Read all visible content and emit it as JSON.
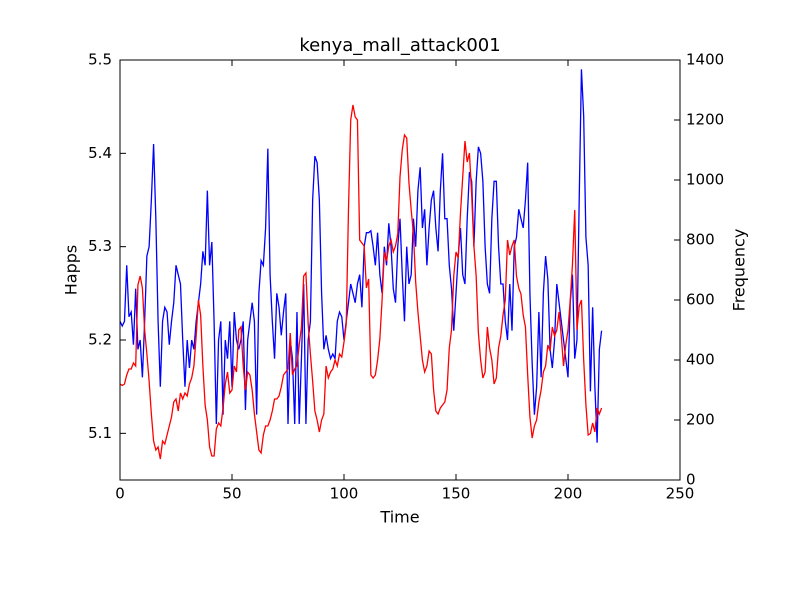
{
  "chart_data": {
    "type": "line",
    "title": "kenya_mall_attack001",
    "xlabel": "Time",
    "ylabel": "Happs",
    "y2label": "Frequency",
    "x": [
      0,
      1,
      2,
      3,
      4,
      5,
      6,
      7,
      8,
      9,
      10,
      11,
      12,
      13,
      14,
      15,
      16,
      17,
      18,
      19,
      20,
      21,
      22,
      23,
      24,
      25,
      26,
      27,
      28,
      29,
      30,
      31,
      32,
      33,
      34,
      35,
      36,
      37,
      38,
      39,
      40,
      41,
      42,
      43,
      44,
      45,
      46,
      47,
      48,
      49,
      50,
      51,
      52,
      53,
      54,
      55,
      56,
      57,
      58,
      59,
      60,
      61,
      62,
      63,
      64,
      65,
      66,
      67,
      68,
      69,
      70,
      71,
      72,
      73,
      74,
      75,
      76,
      77,
      78,
      79,
      80,
      81,
      82,
      83,
      84,
      85,
      86,
      87,
      88,
      89,
      90,
      91,
      92,
      93,
      94,
      95,
      96,
      97,
      98,
      99,
      100,
      101,
      102,
      103,
      104,
      105,
      106,
      107,
      108,
      109,
      110,
      111,
      112,
      113,
      114,
      115,
      116,
      117,
      118,
      119,
      120,
      121,
      122,
      123,
      124,
      125,
      126,
      127,
      128,
      129,
      130,
      131,
      132,
      133,
      134,
      135,
      136,
      137,
      138,
      139,
      140,
      141,
      142,
      143,
      144,
      145,
      146,
      147,
      148,
      149,
      150,
      151,
      152,
      153,
      154,
      155,
      156,
      157,
      158,
      159,
      160,
      161,
      162,
      163,
      164,
      165,
      166,
      167,
      168,
      169,
      170,
      171,
      172,
      173,
      174,
      175,
      176,
      177,
      178,
      179,
      180,
      181,
      182,
      183,
      184,
      185,
      186,
      187,
      188,
      189,
      190,
      191,
      192,
      193,
      194,
      195,
      196,
      197,
      198,
      199,
      200,
      201,
      202,
      203,
      204,
      205,
      206,
      207,
      208,
      209,
      210,
      211,
      212,
      213,
      214,
      215
    ],
    "series": [
      {
        "color": "#0000ff",
        "axis": "y",
        "values": [
          5.22,
          5.215,
          5.22,
          5.28,
          5.225,
          5.23,
          5.195,
          5.255,
          5.19,
          5.2,
          5.16,
          5.22,
          5.29,
          5.3,
          5.35,
          5.41,
          5.33,
          5.22,
          5.15,
          5.22,
          5.235,
          5.23,
          5.195,
          5.22,
          5.24,
          5.28,
          5.27,
          5.26,
          5.2,
          5.15,
          5.2,
          5.17,
          5.2,
          5.19,
          5.22,
          5.24,
          5.26,
          5.295,
          5.28,
          5.36,
          5.28,
          5.305,
          5.22,
          5.11,
          5.2,
          5.22,
          5.12,
          5.2,
          5.18,
          5.22,
          5.15,
          5.23,
          5.2,
          5.19,
          5.2,
          5.22,
          5.125,
          5.2,
          5.22,
          5.24,
          5.22,
          5.12,
          5.25,
          5.285,
          5.28,
          5.32,
          5.405,
          5.27,
          5.22,
          5.18,
          5.25,
          5.235,
          5.205,
          5.23,
          5.25,
          5.11,
          5.2,
          5.18,
          5.11,
          5.23,
          5.11,
          5.18,
          5.26,
          5.11,
          5.2,
          5.22,
          5.35,
          5.397,
          5.39,
          5.35,
          5.25,
          5.19,
          5.205,
          5.19,
          5.18,
          5.185,
          5.18,
          5.22,
          5.23,
          5.225,
          5.2,
          5.22,
          5.24,
          5.26,
          5.25,
          5.24,
          5.26,
          5.27,
          5.235,
          5.3,
          5.315,
          5.315,
          5.317,
          5.3,
          5.28,
          5.315,
          5.27,
          5.25,
          5.3,
          5.28,
          5.325,
          5.3,
          5.255,
          5.24,
          5.3,
          5.33,
          5.27,
          5.22,
          5.3,
          5.26,
          5.27,
          5.33,
          5.3,
          5.36,
          5.385,
          5.32,
          5.34,
          5.28,
          5.32,
          5.35,
          5.36,
          5.32,
          5.295,
          5.36,
          5.4,
          5.33,
          5.33,
          5.28,
          5.255,
          5.21,
          5.25,
          5.29,
          5.32,
          5.27,
          5.26,
          5.33,
          5.38,
          5.37,
          5.3,
          5.37,
          5.407,
          5.4,
          5.37,
          5.3,
          5.26,
          5.25,
          5.33,
          5.37,
          5.37,
          5.3,
          5.26,
          5.26,
          5.22,
          5.2,
          5.26,
          5.21,
          5.3,
          5.31,
          5.34,
          5.33,
          5.32,
          5.35,
          5.39,
          5.25,
          5.175,
          5.12,
          5.15,
          5.23,
          5.16,
          5.25,
          5.29,
          5.265,
          5.19,
          5.17,
          5.2,
          5.26,
          5.24,
          5.22,
          5.2,
          5.18,
          5.16,
          5.24,
          5.27,
          5.18,
          5.2,
          5.35,
          5.49,
          5.44,
          5.31,
          5.28,
          5.145,
          5.235,
          5.15,
          5.09,
          5.19,
          5.21
        ]
      },
      {
        "color": "#ff0000",
        "axis": "y2",
        "values": [
          320,
          315,
          320,
          350,
          370,
          370,
          390,
          380,
          650,
          680,
          640,
          500,
          420,
          330,
          220,
          130,
          100,
          110,
          70,
          130,
          120,
          150,
          180,
          210,
          260,
          270,
          230,
          290,
          270,
          290,
          280,
          320,
          340,
          380,
          480,
          600,
          550,
          380,
          250,
          200,
          110,
          80,
          80,
          170,
          190,
          180,
          240,
          320,
          360,
          290,
          300,
          380,
          360,
          500,
          510,
          380,
          300,
          360,
          350,
          300,
          220,
          160,
          100,
          90,
          150,
          180,
          180,
          200,
          230,
          270,
          270,
          280,
          310,
          350,
          360,
          370,
          490,
          350,
          370,
          380,
          450,
          510,
          680,
          690,
          520,
          420,
          330,
          230,
          200,
          160,
          200,
          220,
          380,
          340,
          360,
          370,
          400,
          380,
          420,
          410,
          460,
          520,
          900,
          1200,
          1250,
          1210,
          1200,
          800,
          790,
          780,
          640,
          670,
          350,
          340,
          350,
          400,
          470,
          600,
          760,
          730,
          780,
          800,
          760,
          780,
          820,
          1010,
          1100,
          1150,
          1140,
          990,
          900,
          820,
          660,
          560,
          480,
          400,
          360,
          380,
          430,
          420,
          300,
          230,
          220,
          240,
          250,
          260,
          300,
          440,
          500,
          680,
          760,
          740,
          890,
          1010,
          1130,
          1060,
          1090,
          950,
          780,
          680,
          490,
          400,
          340,
          360,
          510,
          440,
          400,
          320,
          340,
          440,
          480,
          550,
          600,
          800,
          750,
          780,
          800,
          680,
          640,
          620,
          550,
          510,
          350,
          210,
          140,
          180,
          200,
          260,
          300,
          360,
          380,
          450,
          430,
          510,
          480,
          500,
          560,
          480,
          380,
          450,
          500,
          600,
          720,
          900,
          500,
          580,
          600,
          400,
          250,
          150,
          155,
          190,
          160,
          240,
          220,
          240
        ]
      }
    ],
    "xlim": [
      0,
      250
    ],
    "xticks": [
      0,
      50,
      100,
      150,
      200,
      250
    ],
    "ylim": [
      5.05,
      5.5
    ],
    "yticks": [
      5.1,
      5.2,
      5.3,
      5.4,
      5.5
    ],
    "y2lim": [
      0,
      1400
    ],
    "y2ticks": [
      0,
      200,
      400,
      600,
      800,
      1000,
      1200,
      1400
    ]
  }
}
